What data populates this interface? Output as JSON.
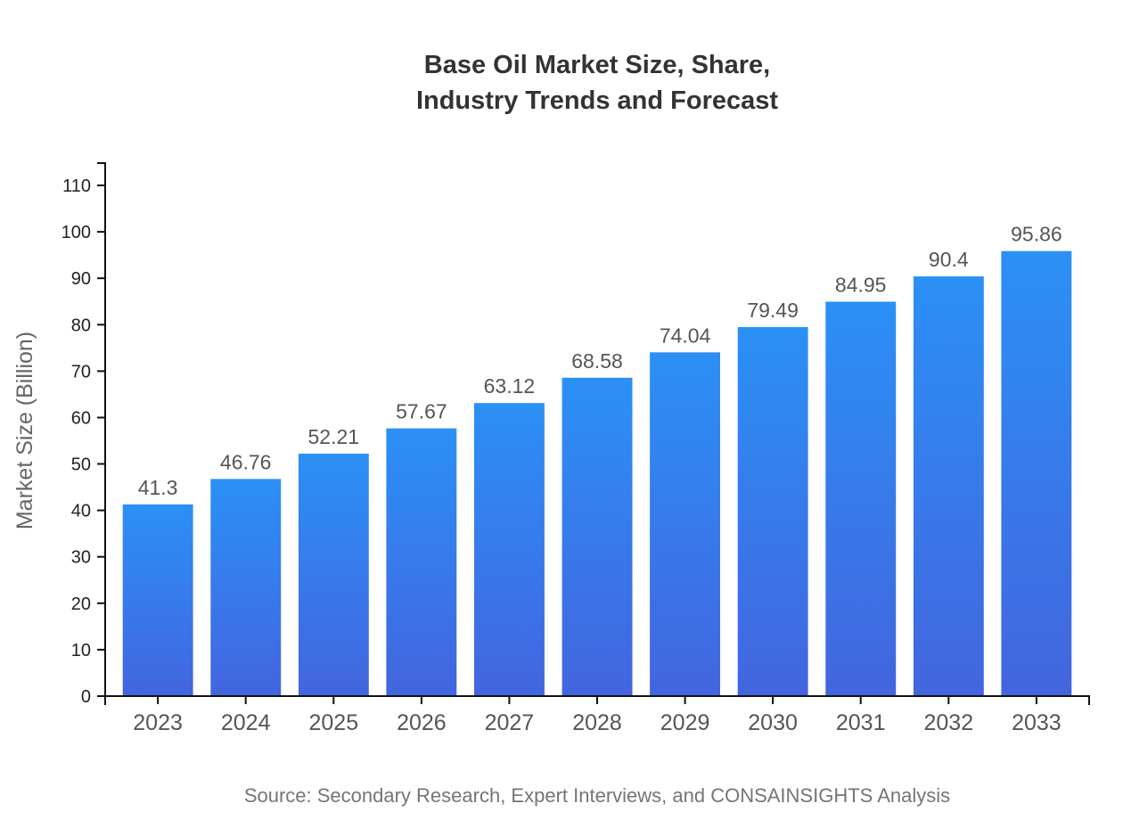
{
  "chart": {
    "title_lines": [
      "Base Oil Market Size, Share,",
      "Industry Trends and Forecast"
    ],
    "ylabel": "Market Size (Billion)",
    "source": "Source: Secondary Research, Expert Interviews, and CONSAINSIGHTS Analysis"
  },
  "chart_data": {
    "type": "bar",
    "title": "Base Oil Market Size, Share, Industry Trends and Forecast",
    "categories": [
      "2023",
      "2024",
      "2025",
      "2026",
      "2027",
      "2028",
      "2029",
      "2030",
      "2031",
      "2032",
      "2033"
    ],
    "values": [
      41.3,
      46.76,
      52.21,
      57.67,
      63.12,
      68.58,
      74.04,
      79.49,
      84.95,
      90.4,
      95.86
    ],
    "value_labels": [
      "41.3",
      "46.76",
      "52.21",
      "57.67",
      "63.12",
      "68.58",
      "74.04",
      "79.49",
      "84.95",
      "90.4",
      "95.86"
    ],
    "xlabel": "",
    "ylabel": "Market Size (Billion)",
    "ylim": [
      0,
      110
    ],
    "ytick_step": 10,
    "ytick_labels": [
      "0",
      "10",
      "20",
      "30",
      "40",
      "50",
      "60",
      "70",
      "80",
      "90",
      "100",
      "110"
    ],
    "grid": false,
    "legend": "none",
    "bar_gradient_top": "#2B90F5",
    "bar_gradient_bottom": "#4365DE",
    "axis_color": "#111111",
    "title_color": "#333333",
    "value_label_color": "#555555",
    "source": "Source: Secondary Research, Expert Interviews, and CONSAINSIGHTS Analysis"
  }
}
